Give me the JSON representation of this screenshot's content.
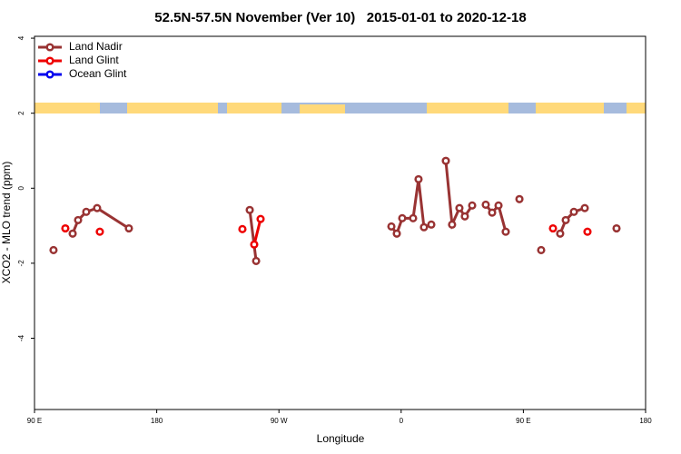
{
  "chart_data": {
    "type": "line",
    "title": "52.5N-57.5N November (Ver 10)   2015-01-01 to 2020-12-18",
    "x_label": "Longitude",
    "y_label": "XCO2 - MLO trend (ppm)",
    "xlim": [
      90,
      540
    ],
    "xticks": [
      {
        "value": 90,
        "label": "90 E"
      },
      {
        "value": 180,
        "label": "180"
      },
      {
        "value": 270,
        "label": "90 W"
      },
      {
        "value": 360,
        "label": "0"
      },
      {
        "value": 450,
        "label": "90 E"
      },
      {
        "value": 540,
        "label": "180"
      }
    ],
    "ylim": [
      -5.9,
      4.05
    ],
    "yticks": [
      4,
      2,
      0,
      -2,
      -4
    ],
    "legend": "top-left",
    "series": [
      {
        "name": "Land Nadir",
        "color": "#993333",
        "x": [
          104.0,
          null,
          118.1,
          122.1,
          128.1,
          136.1,
          159.5,
          null,
          248.5,
          253.2,
          null,
          352.8,
          356.8,
          360.8,
          368.8,
          372.8,
          376.8,
          382.2,
          null,
          392.9,
          397.5,
          402.9,
          406.9,
          412.3,
          null,
          422.3,
          427.0,
          431.7,
          437.0,
          null,
          447.1,
          null,
          463.1,
          null,
          477.1,
          481.2,
          487.2,
          495.2,
          null,
          518.6
        ],
        "values": [
          -1.65,
          null,
          -1.21,
          -0.85,
          -0.63,
          -0.53,
          -1.07,
          null,
          -0.58,
          -1.94,
          null,
          -1.02,
          -1.21,
          -0.8,
          -0.8,
          0.24,
          -1.04,
          -0.97,
          null,
          0.73,
          -0.97,
          -0.53,
          -0.75,
          -0.46,
          null,
          -0.44,
          -0.65,
          -0.46,
          -1.16,
          null,
          -0.29,
          null,
          -1.65,
          null,
          -1.21,
          -0.85,
          -0.63,
          -0.53,
          null,
          -1.07
        ]
      },
      {
        "name": "Land Glint",
        "color": "#ee0000",
        "x": [
          112.7,
          null,
          138.1,
          null,
          243.1,
          null,
          251.8,
          256.5,
          null,
          471.8,
          null,
          497.2
        ],
        "values": [
          -1.07,
          null,
          -1.16,
          null,
          -1.09,
          null,
          -1.5,
          -0.82,
          null,
          -1.07,
          null,
          -1.16
        ]
      },
      {
        "name": "Ocean Glint",
        "color": "#0000ee",
        "x": [],
        "values": []
      }
    ]
  }
}
